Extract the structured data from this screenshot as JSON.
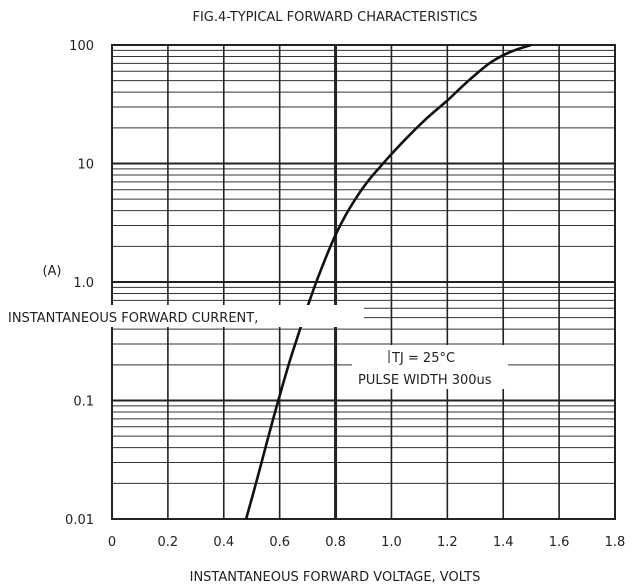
{
  "chart_data": {
    "type": "line",
    "title": "FIG.4-TYPICAL FORWARD CHARACTERISTICS",
    "xlabel": "INSTANTANEOUS FORWARD VOLTAGE, VOLTS",
    "ylabel": "INSTANTANEOUS FORWARD CURRENT,",
    "yunit": "(A)",
    "xlim": [
      0,
      1.8
    ],
    "ylim": [
      0.01,
      100
    ],
    "yscale": "log",
    "grid": true,
    "x_ticks": [
      "0",
      "0.2",
      "0.4",
      "0.6",
      "0.8",
      "1.0",
      "1.2",
      "1.4",
      "1.6",
      "1.8"
    ],
    "y_ticks": [
      {
        "value": 100,
        "label": "100"
      },
      {
        "value": 10,
        "label": "10"
      },
      {
        "value": 1,
        "label": "1.0"
      },
      {
        "value": 0.1,
        "label": "0.1"
      },
      {
        "value": 0.01,
        "label": "0.01"
      }
    ],
    "annotation": [
      "TJ = 25°C",
      "PULSE WIDTH 300us"
    ],
    "series": [
      {
        "x": [
          0.48,
          0.52,
          0.56,
          0.6,
          0.64,
          0.68,
          0.72,
          0.76,
          0.8,
          0.84,
          0.88,
          0.92,
          0.96,
          1.0,
          1.05,
          1.1,
          1.15,
          1.2,
          1.25,
          1.3,
          1.35,
          1.4,
          1.45,
          1.5
        ],
        "y": [
          0.01,
          0.022,
          0.05,
          0.11,
          0.23,
          0.45,
          0.85,
          1.5,
          2.5,
          3.8,
          5.4,
          7.3,
          9.4,
          12,
          16,
          21,
          27,
          34,
          44,
          56,
          70,
          82,
          92,
          100
        ]
      }
    ]
  }
}
